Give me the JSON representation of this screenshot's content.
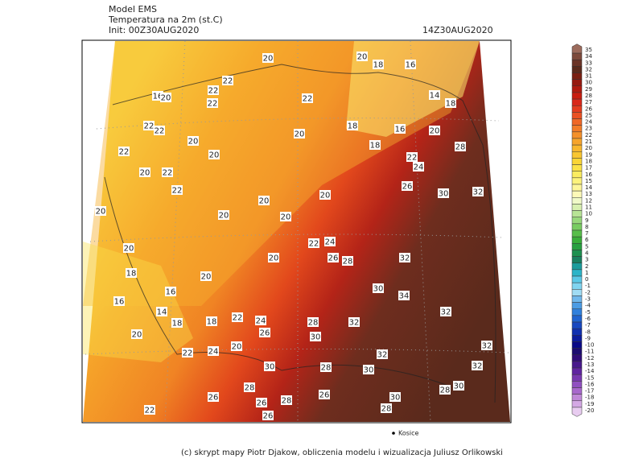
{
  "header": {
    "model": "Model EMS",
    "title": "Temperatura na 2m (st.C)",
    "init": "Init: 00Z30AUG2020",
    "valid": "14Z30AUG2020"
  },
  "colorbar": {
    "levels": [
      35,
      34,
      33,
      32,
      31,
      30,
      29,
      28,
      27,
      26,
      25,
      24,
      23,
      22,
      21,
      20,
      19,
      18,
      17,
      16,
      15,
      14,
      13,
      12,
      11,
      10,
      9,
      8,
      7,
      6,
      5,
      4,
      3,
      2,
      1,
      0,
      -1,
      -2,
      -3,
      -4,
      -5,
      -6,
      -7,
      -8,
      -9,
      -10,
      -11,
      -12,
      -13,
      -14,
      -15,
      -16,
      -17,
      -18,
      -19,
      -20
    ],
    "colors": [
      "#9c6b5c",
      "#7d4a3c",
      "#6b3427",
      "#5a2a1c",
      "#7a1f12",
      "#961a10",
      "#b01a0f",
      "#c81d10",
      "#d9281a",
      "#e43c1f",
      "#ea5123",
      "#ef6726",
      "#f27c28",
      "#f4902a",
      "#f6a42c",
      "#f8b72e",
      "#f9c630",
      "#fad535",
      "#fbe246",
      "#fbec60",
      "#fcf27c",
      "#fdf69a",
      "#fdf9b8",
      "#f0f9c8",
      "#d8f0b0",
      "#b8e496",
      "#98d87c",
      "#78cc62",
      "#58be4a",
      "#3aae3a",
      "#28a040",
      "#1e9050",
      "#1a8060",
      "#1c9c9c",
      "#2cb4c8",
      "#5ac8e6",
      "#80d4f0",
      "#a0dcf4",
      "#70b8ec",
      "#4c9ce4",
      "#3080dc",
      "#2064d0",
      "#1848c0",
      "#1030b0",
      "#0c1c9c",
      "#0a0a88",
      "#1c0c70",
      "#300c78",
      "#48188c",
      "#6024a0",
      "#7838b0",
      "#9050c0",
      "#a868cc",
      "#c088d8",
      "#d4a8e4",
      "#e8ccf0"
    ]
  },
  "contour_labels": [
    20,
    20,
    18,
    16,
    22,
    16,
    20,
    22,
    22,
    22,
    14,
    18,
    22,
    22,
    20,
    18,
    16,
    20,
    22,
    20,
    20,
    18,
    22,
    28,
    24,
    20,
    22,
    22,
    26,
    30,
    32,
    20,
    20,
    20,
    20,
    20,
    22,
    24,
    20,
    26,
    28,
    32,
    20,
    18,
    20,
    30,
    16,
    34,
    16,
    14,
    32,
    22,
    24,
    18,
    18,
    28,
    32,
    20,
    26,
    30,
    32,
    22,
    24,
    20,
    32,
    30,
    32,
    28,
    30,
    30,
    28,
    28,
    26,
    26,
    28,
    26,
    30,
    22,
    28,
    26
  ],
  "cities": [
    "Kosice"
  ],
  "footer": "(c) skrypt mapy Piotr Djakow, obliczenia modelu i wizualizacja Juliusz Orlikowski"
}
